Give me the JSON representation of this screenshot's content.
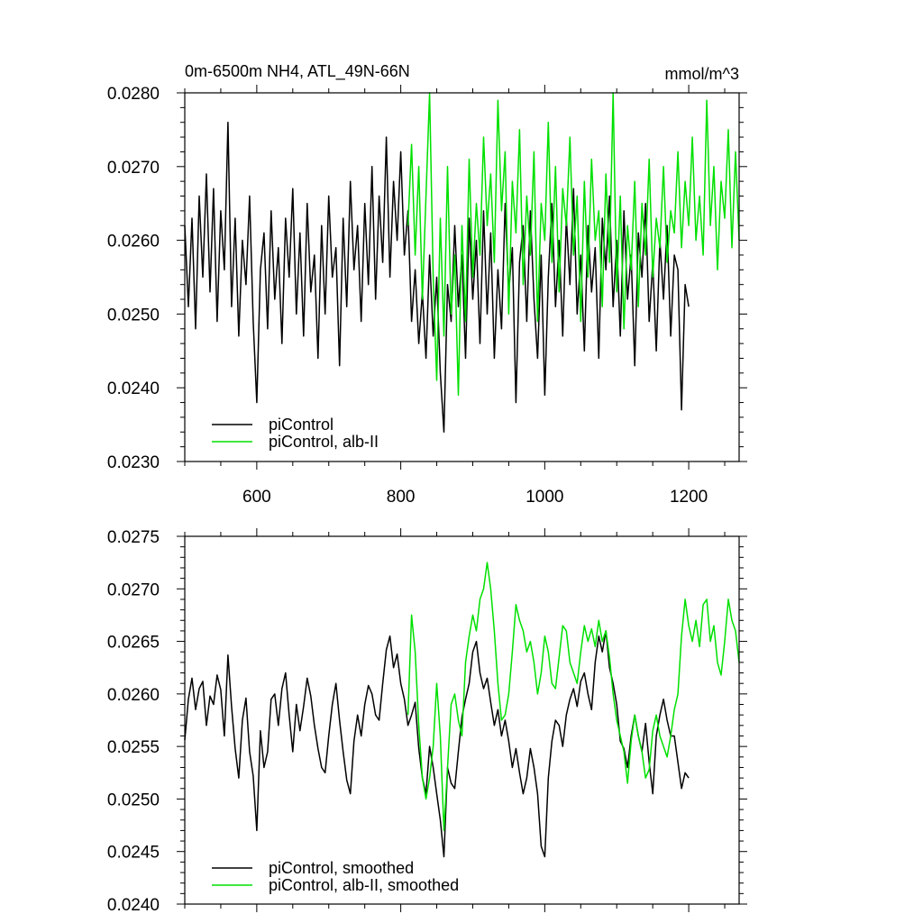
{
  "colors": {
    "control": "#000000",
    "alb": "#00e000",
    "axis": "#000000",
    "background": "#ffffff"
  },
  "chart_data": [
    {
      "type": "line",
      "title": "0m-6500m NH4, ATL_49N-66N",
      "units": "mmol/m^3",
      "xlim": [
        500,
        1270
      ],
      "ylim": [
        0.023,
        0.028
      ],
      "xticks": [
        600,
        800,
        1000,
        1200
      ],
      "xtick_labels": [
        "600",
        "800",
        "1000",
        "1200"
      ],
      "yticks": [
        0.023,
        0.024,
        0.025,
        0.026,
        0.027,
        0.028
      ],
      "ytick_labels": [
        "0.0230",
        "0.0240",
        "0.0250",
        "0.0260",
        "0.0270",
        "0.0280"
      ],
      "legend_position": "bottom-left",
      "series": [
        {
          "name": "piControl",
          "color": "#000000",
          "x": [
            500,
            505,
            510,
            515,
            520,
            525,
            530,
            535,
            540,
            545,
            550,
            555,
            560,
            565,
            570,
            575,
            580,
            585,
            590,
            595,
            600,
            605,
            610,
            615,
            620,
            625,
            630,
            635,
            640,
            645,
            650,
            655,
            660,
            665,
            670,
            675,
            680,
            685,
            690,
            695,
            700,
            705,
            710,
            715,
            720,
            725,
            730,
            735,
            740,
            745,
            750,
            755,
            760,
            765,
            770,
            775,
            780,
            785,
            790,
            795,
            800,
            805,
            810,
            815,
            820,
            825,
            830,
            835,
            840,
            845,
            850,
            855,
            860,
            865,
            870,
            875,
            880,
            885,
            890,
            895,
            900,
            905,
            910,
            915,
            920,
            925,
            930,
            935,
            940,
            945,
            950,
            955,
            960,
            965,
            970,
            975,
            980,
            985,
            990,
            995,
            1000,
            1005,
            1010,
            1015,
            1020,
            1025,
            1030,
            1035,
            1040,
            1045,
            1050,
            1055,
            1060,
            1065,
            1070,
            1075,
            1080,
            1085,
            1090,
            1095,
            1100,
            1105,
            1110,
            1115,
            1120,
            1125,
            1130,
            1135,
            1140,
            1145,
            1150,
            1155,
            1160,
            1165,
            1170,
            1175,
            1180,
            1185,
            1190,
            1195,
            1200
          ],
          "values": [
            0.0262,
            0.0251,
            0.0263,
            0.0248,
            0.0266,
            0.0255,
            0.0269,
            0.0253,
            0.0267,
            0.0249,
            0.0264,
            0.0256,
            0.0276,
            0.0251,
            0.0263,
            0.0247,
            0.026,
            0.0254,
            0.0266,
            0.0249,
            0.0238,
            0.0256,
            0.0261,
            0.0248,
            0.0264,
            0.0252,
            0.0259,
            0.0246,
            0.0263,
            0.0255,
            0.0267,
            0.025,
            0.0261,
            0.0247,
            0.0265,
            0.0253,
            0.0258,
            0.0244,
            0.0262,
            0.025,
            0.0266,
            0.0255,
            0.0259,
            0.0243,
            0.0263,
            0.0251,
            0.0268,
            0.0256,
            0.0262,
            0.0249,
            0.0265,
            0.0254,
            0.027,
            0.0252,
            0.0266,
            0.0257,
            0.0274,
            0.0255,
            0.0268,
            0.026,
            0.0272,
            0.0258,
            0.0264,
            0.0249,
            0.0256,
            0.0246,
            0.0253,
            0.0244,
            0.0258,
            0.0247,
            0.0255,
            0.0242,
            0.0234,
            0.0254,
            0.0249,
            0.0262,
            0.0251,
            0.0258,
            0.0244,
            0.0263,
            0.0252,
            0.026,
            0.0246,
            0.0264,
            0.025,
            0.0261,
            0.0244,
            0.0256,
            0.0248,
            0.0265,
            0.0253,
            0.0259,
            0.0238,
            0.0257,
            0.0262,
            0.0249,
            0.0264,
            0.0252,
            0.0244,
            0.0258,
            0.0239,
            0.0255,
            0.0265,
            0.0251,
            0.026,
            0.0247,
            0.0263,
            0.0254,
            0.0267,
            0.025,
            0.0258,
            0.0245,
            0.0262,
            0.0253,
            0.0259,
            0.0244,
            0.0263,
            0.0256,
            0.0266,
            0.0251,
            0.026,
            0.0247,
            0.0264,
            0.0252,
            0.0258,
            0.0243,
            0.0261,
            0.0255,
            0.0265,
            0.0249,
            0.0257,
            0.0245,
            0.026,
            0.0252,
            0.0262,
            0.0247,
            0.0258,
            0.0256,
            0.0237,
            0.0254,
            0.0251
          ]
        },
        {
          "name": "piControl, alb-II",
          "color": "#00e000",
          "x": [
            810,
            815,
            820,
            825,
            830,
            835,
            840,
            845,
            850,
            855,
            860,
            865,
            870,
            875,
            880,
            885,
            890,
            895,
            900,
            905,
            910,
            915,
            920,
            925,
            930,
            935,
            940,
            945,
            950,
            955,
            960,
            965,
            970,
            975,
            980,
            985,
            990,
            995,
            1000,
            1005,
            1010,
            1015,
            1020,
            1025,
            1030,
            1035,
            1040,
            1045,
            1050,
            1055,
            1060,
            1065,
            1070,
            1075,
            1080,
            1085,
            1090,
            1095,
            1100,
            1105,
            1110,
            1115,
            1120,
            1125,
            1130,
            1135,
            1140,
            1145,
            1150,
            1155,
            1160,
            1165,
            1170,
            1175,
            1180,
            1185,
            1190,
            1195,
            1200,
            1205,
            1210,
            1215,
            1220,
            1225,
            1230,
            1235,
            1240,
            1245,
            1250,
            1255,
            1260,
            1265,
            1270
          ],
          "values": [
            0.0262,
            0.0273,
            0.0258,
            0.027,
            0.0252,
            0.0266,
            0.028,
            0.0255,
            0.0241,
            0.0263,
            0.0247,
            0.027,
            0.025,
            0.0258,
            0.0239,
            0.0262,
            0.0249,
            0.0271,
            0.0255,
            0.0265,
            0.0258,
            0.0274,
            0.0262,
            0.0269,
            0.0257,
            0.0279,
            0.0264,
            0.0272,
            0.025,
            0.0268,
            0.0261,
            0.0275,
            0.0254,
            0.0266,
            0.0258,
            0.0272,
            0.0249,
            0.0265,
            0.026,
            0.0276,
            0.0257,
            0.027,
            0.0253,
            0.0267,
            0.0262,
            0.0274,
            0.0258,
            0.0266,
            0.0249,
            0.0268,
            0.0255,
            0.0271,
            0.026,
            0.0264,
            0.0251,
            0.0269,
            0.0257,
            0.028,
            0.0253,
            0.0266,
            0.0248,
            0.0262,
            0.0256,
            0.0268,
            0.0251,
            0.0265,
            0.0258,
            0.0271,
            0.0255,
            0.0263,
            0.0259,
            0.027,
            0.0257,
            0.0264,
            0.0261,
            0.0272,
            0.0259,
            0.0268,
            0.0262,
            0.0274,
            0.026,
            0.0266,
            0.0258,
            0.0279,
            0.0262,
            0.027,
            0.0256,
            0.0268,
            0.0263,
            0.0275,
            0.0259,
            0.0272,
            0.026
          ]
        }
      ]
    },
    {
      "type": "line",
      "xlim": [
        500,
        1270
      ],
      "ylim": [
        0.024,
        0.0275
      ],
      "xticks": [
        600,
        800,
        1000,
        1200
      ],
      "yticks": [
        0.024,
        0.0245,
        0.025,
        0.0255,
        0.026,
        0.0265,
        0.027,
        0.0275
      ],
      "ytick_labels": [
        "0.0240",
        "0.0245",
        "0.0250",
        "0.0255",
        "0.0260",
        "0.0265",
        "0.0270",
        "0.0275"
      ],
      "legend_position": "bottom-left",
      "series": [
        {
          "name": "piControl, smoothed",
          "color": "#000000",
          "x": [
            500,
            505,
            510,
            515,
            520,
            525,
            530,
            535,
            540,
            545,
            550,
            555,
            560,
            565,
            570,
            575,
            580,
            585,
            590,
            595,
            600,
            605,
            610,
            615,
            620,
            625,
            630,
            635,
            640,
            645,
            650,
            655,
            660,
            665,
            670,
            675,
            680,
            685,
            690,
            695,
            700,
            705,
            710,
            715,
            720,
            725,
            730,
            735,
            740,
            745,
            750,
            755,
            760,
            765,
            770,
            775,
            780,
            785,
            790,
            795,
            800,
            805,
            810,
            815,
            820,
            825,
            830,
            835,
            840,
            845,
            850,
            855,
            860,
            865,
            870,
            875,
            880,
            885,
            890,
            895,
            900,
            905,
            910,
            915,
            920,
            925,
            930,
            935,
            940,
            945,
            950,
            955,
            960,
            965,
            970,
            975,
            980,
            985,
            990,
            995,
            1000,
            1005,
            1010,
            1015,
            1020,
            1025,
            1030,
            1035,
            1040,
            1045,
            1050,
            1055,
            1060,
            1065,
            1070,
            1075,
            1080,
            1085,
            1090,
            1095,
            1100,
            1105,
            1110,
            1115,
            1120,
            1125,
            1130,
            1135,
            1140,
            1145,
            1150,
            1155,
            1160,
            1165,
            1170,
            1175,
            1180,
            1185,
            1190,
            1195,
            1200
          ],
          "values": [
            0.02556,
            0.02595,
            0.02615,
            0.02585,
            0.02605,
            0.02612,
            0.0257,
            0.02598,
            0.0259,
            0.02618,
            0.02604,
            0.0256,
            0.02637,
            0.02588,
            0.02548,
            0.0252,
            0.02575,
            0.02596,
            0.02545,
            0.02522,
            0.0247,
            0.02565,
            0.0253,
            0.02545,
            0.02595,
            0.026,
            0.0257,
            0.02605,
            0.0262,
            0.0258,
            0.02545,
            0.0259,
            0.02565,
            0.02588,
            0.02615,
            0.02598,
            0.0257,
            0.02548,
            0.0253,
            0.02525,
            0.0256,
            0.0259,
            0.0261,
            0.02575,
            0.02545,
            0.02518,
            0.02505,
            0.02555,
            0.0258,
            0.0256,
            0.0259,
            0.02608,
            0.026,
            0.0258,
            0.02575,
            0.0261,
            0.02642,
            0.02655,
            0.02625,
            0.02638,
            0.0261,
            0.02595,
            0.0257,
            0.0258,
            0.02592,
            0.02548,
            0.0252,
            0.02505,
            0.0255,
            0.0253,
            0.02505,
            0.0248,
            0.02445,
            0.0253,
            0.02515,
            0.0251,
            0.02545,
            0.02578,
            0.02595,
            0.0261,
            0.0264,
            0.0265,
            0.0262,
            0.02605,
            0.02615,
            0.02592,
            0.0257,
            0.02585,
            0.0256,
            0.02575,
            0.02555,
            0.0253,
            0.02548,
            0.02525,
            0.02505,
            0.0252,
            0.02548,
            0.0253,
            0.02505,
            0.02455,
            0.02445,
            0.0252,
            0.02555,
            0.02575,
            0.0257,
            0.0255,
            0.0258,
            0.02595,
            0.02605,
            0.02588,
            0.02612,
            0.0262,
            0.026,
            0.02585,
            0.0263,
            0.02655,
            0.0264,
            0.0266,
            0.02625,
            0.0261,
            0.0259,
            0.02555,
            0.02548,
            0.0253,
            0.0256,
            0.0258,
            0.0256,
            0.02545,
            0.02572,
            0.02535,
            0.02505,
            0.0256,
            0.0258,
            0.02595,
            0.02575,
            0.0256,
            0.0256,
            0.02535,
            0.0251,
            0.02525,
            0.0252
          ]
        },
        {
          "name": "piControl, alb-II, smoothed",
          "color": "#00e000",
          "x": [
            810,
            815,
            820,
            825,
            830,
            835,
            840,
            845,
            850,
            855,
            860,
            865,
            870,
            875,
            880,
            885,
            890,
            895,
            900,
            905,
            910,
            915,
            920,
            925,
            930,
            935,
            940,
            945,
            950,
            955,
            960,
            965,
            970,
            975,
            980,
            985,
            990,
            995,
            1000,
            1005,
            1010,
            1015,
            1020,
            1025,
            1030,
            1035,
            1040,
            1045,
            1050,
            1055,
            1060,
            1065,
            1070,
            1075,
            1080,
            1085,
            1090,
            1095,
            1100,
            1105,
            1110,
            1115,
            1120,
            1125,
            1130,
            1135,
            1140,
            1145,
            1150,
            1155,
            1160,
            1165,
            1170,
            1175,
            1180,
            1185,
            1190,
            1195,
            1200,
            1205,
            1210,
            1215,
            1220,
            1225,
            1230,
            1235,
            1240,
            1245,
            1250,
            1255,
            1260,
            1265,
            1270
          ],
          "values": [
            0.0258,
            0.02675,
            0.0264,
            0.0257,
            0.0252,
            0.025,
            0.0252,
            0.0255,
            0.0261,
            0.0256,
            0.0247,
            0.0253,
            0.0259,
            0.026,
            0.02575,
            0.0256,
            0.0263,
            0.02655,
            0.02675,
            0.0266,
            0.0269,
            0.027,
            0.02725,
            0.027,
            0.0266,
            0.0261,
            0.02575,
            0.0258,
            0.026,
            0.0264,
            0.02685,
            0.0267,
            0.0266,
            0.0264,
            0.0265,
            0.0263,
            0.026,
            0.0262,
            0.02655,
            0.0264,
            0.0261,
            0.02605,
            0.02635,
            0.02665,
            0.0266,
            0.0263,
            0.0262,
            0.0261,
            0.0264,
            0.02665,
            0.0265,
            0.02662,
            0.02645,
            0.0267,
            0.0265,
            0.0266,
            0.02635,
            0.026,
            0.02575,
            0.0256,
            0.02545,
            0.02515,
            0.02555,
            0.0258,
            0.0256,
            0.02545,
            0.0252,
            0.02528,
            0.02565,
            0.0258,
            0.0256,
            0.0255,
            0.0254,
            0.0256,
            0.02585,
            0.026,
            0.02655,
            0.0269,
            0.02665,
            0.0265,
            0.0267,
            0.02645,
            0.02685,
            0.0269,
            0.0265,
            0.02665,
            0.0263,
            0.02618,
            0.0265,
            0.0269,
            0.0267,
            0.0266,
            0.0263
          ]
        }
      ]
    }
  ]
}
